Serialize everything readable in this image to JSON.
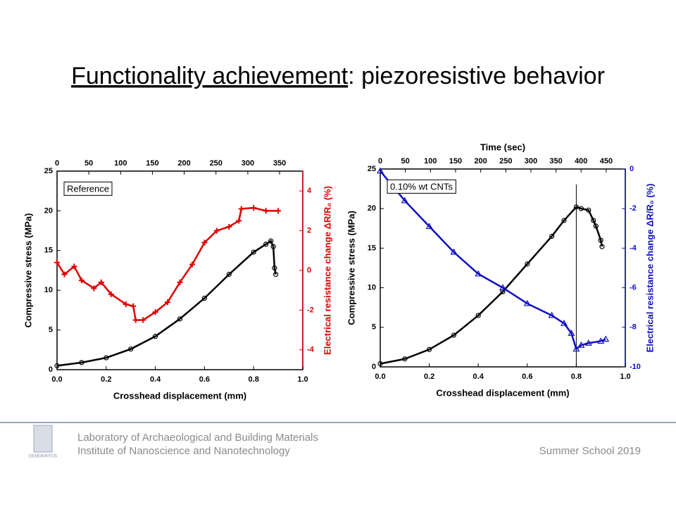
{
  "slide": {
    "title_underlined": "Functionality achievement",
    "title_rest": ": piezoresistive behavior",
    "footer": {
      "lab": "Laboratory of Archaeological and Building Materials",
      "institute": "Institute of Nanoscience and Nanotechnology",
      "event": "Summer School 2019",
      "logo": "DEMOKRITOS"
    }
  },
  "chart_data": [
    {
      "type": "scatter",
      "xlabel": "Crosshead displacement (mm)",
      "ylabel": "Compressive stress (MPa)",
      "y2label": "Electrical resistance change ΔR/R₀ (%)",
      "annotation": "Reference",
      "xlim": [
        0,
        1
      ],
      "xticks": [
        {
          "value": 0,
          "label": "0.0"
        },
        0.2,
        0.4,
        0.6,
        0.8,
        {
          "value": 1,
          "label": "1.0"
        }
      ],
      "ylim": [
        0,
        25
      ],
      "yticks": [
        0,
        5,
        10,
        15,
        20,
        25
      ],
      "y2lim": [
        -5,
        5
      ],
      "y2ticks": [
        -4,
        -2,
        0,
        2,
        4
      ],
      "y2color": "#e00000",
      "x2lim": [
        0,
        386.5
      ],
      "x2ticks": [
        0,
        50,
        100,
        150,
        200,
        250,
        300,
        350
      ],
      "series": [
        {
          "color": "#000000",
          "marker": "circle",
          "x": [
            0,
            0.1,
            0.2,
            0.3,
            0.4,
            0.5,
            0.6,
            0.7,
            0.8,
            0.85,
            0.87,
            0.88,
            0.885,
            0.89
          ],
          "values": [
            0.5,
            0.9,
            1.5,
            2.6,
            4.2,
            6.4,
            9,
            12,
            14.8,
            15.8,
            16.2,
            15.5,
            12.8,
            12
          ]
        },
        {
          "color": "#e00000",
          "marker": "plus",
          "axis": "y2",
          "x": [
            0,
            0.03,
            0.07,
            0.1,
            0.15,
            0.18,
            0.22,
            0.28,
            0.31,
            0.32,
            0.35,
            0.4,
            0.45,
            0.5,
            0.55,
            0.6,
            0.65,
            0.7,
            0.74,
            0.75,
            0.8,
            0.85,
            0.9
          ],
          "values": [
            0.4,
            -0.2,
            0.2,
            -0.5,
            -0.9,
            -0.6,
            -1.2,
            -1.7,
            -1.8,
            -2.5,
            -2.5,
            -2.1,
            -1.6,
            -0.6,
            0.3,
            1.4,
            2,
            2.2,
            2.5,
            3.1,
            3.15,
            3,
            3
          ]
        }
      ]
    },
    {
      "type": "scatter",
      "xlabel": "Crosshead displacement (mm)",
      "ylabel": "Compressive stress (MPa)",
      "y2label": "Electrical resistance change ΔR/R₀ (%)",
      "x2label": "Time (sec)",
      "annotation": "0.10% wt CNTs",
      "xlim": [
        0,
        1
      ],
      "xticks": [
        {
          "value": 0,
          "label": "0.0"
        },
        0.2,
        0.4,
        0.6,
        0.8,
        {
          "value": 1,
          "label": "1.0"
        }
      ],
      "ylim": [
        0,
        25
      ],
      "yticks": [
        0,
        5,
        10,
        15,
        20,
        25
      ],
      "y2lim": [
        -10,
        0
      ],
      "y2ticks": [
        -10,
        -8,
        -6,
        -4,
        -2,
        0
      ],
      "y2color": "#1010c0",
      "x2lim": [
        0,
        488
      ],
      "x2ticks": [
        0,
        50,
        100,
        150,
        200,
        250,
        300,
        350,
        400,
        450
      ],
      "ref_line_x": 0.8,
      "series": [
        {
          "color": "#000000",
          "marker": "circle",
          "x": [
            0,
            0.1,
            0.2,
            0.3,
            0.4,
            0.5,
            0.6,
            0.7,
            0.75,
            0.8,
            0.82,
            0.85,
            0.87,
            0.88,
            0.9,
            0.905
          ],
          "values": [
            0.4,
            1,
            2.2,
            4,
            6.5,
            9.5,
            13,
            16.5,
            18.5,
            20.2,
            20,
            19.8,
            18.5,
            17.8,
            16,
            15.2
          ]
        },
        {
          "color": "#1010c0",
          "marker": "triangle",
          "axis": "y2",
          "x": [
            0,
            0.1,
            0.2,
            0.3,
            0.4,
            0.5,
            0.6,
            0.7,
            0.75,
            0.78,
            0.8,
            0.82,
            0.85,
            0.9,
            0.92
          ],
          "values": [
            -0.1,
            -1.6,
            -2.9,
            -4.2,
            -5.3,
            -6,
            -6.8,
            -7.4,
            -7.8,
            -8.3,
            -9.1,
            -8.9,
            -8.8,
            -8.7,
            -8.6
          ]
        }
      ]
    }
  ]
}
